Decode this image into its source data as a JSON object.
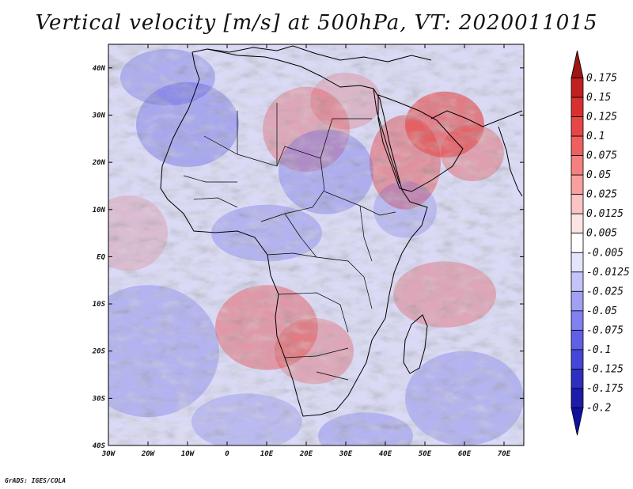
{
  "title": "Vertical velocity [m/s] at 500hPa, VT: 2020011015",
  "credit": "GrADS: IGES/COLA",
  "map": {
    "lon_range": [
      -30,
      75
    ],
    "lat_range": [
      -40,
      45
    ],
    "lon_ticks": [
      -30,
      -20,
      -10,
      0,
      10,
      20,
      30,
      40,
      50,
      60,
      70
    ],
    "lon_tick_labels": [
      "30W",
      "20W",
      "10W",
      "0",
      "10E",
      "20E",
      "30E",
      "40E",
      "50E",
      "60E",
      "70E"
    ],
    "lat_ticks": [
      40,
      30,
      20,
      10,
      0,
      -10,
      -20,
      -30,
      -40
    ],
    "lat_tick_labels": [
      "40N",
      "30N",
      "20N",
      "10N",
      "EQ",
      "10S",
      "20S",
      "30S",
      "40S"
    ],
    "ascent_color": "#5a5ae6",
    "descent_color": "#e64646",
    "coastline_color": "#000000"
  },
  "colorbar": {
    "levels": [
      0.175,
      0.15,
      0.125,
      0.1,
      0.075,
      0.05,
      0.025,
      0.0125,
      0.005,
      -0.005,
      -0.0125,
      -0.025,
      -0.05,
      -0.075,
      -0.1,
      -0.125,
      -0.175,
      -0.2
    ],
    "labels": [
      "0.175",
      "0.15",
      "0.125",
      "0.1",
      "0.075",
      "0.05",
      "0.025",
      "0.0125",
      "0.005",
      "-0.005",
      "-0.0125",
      "-0.025",
      "-0.05",
      "-0.075",
      "-0.1",
      "-0.125",
      "-0.175",
      "-0.2"
    ],
    "colors": [
      "#a01515",
      "#c02020",
      "#d83030",
      "#e64646",
      "#ee6060",
      "#f48080",
      "#f8a0a0",
      "#fbc4c4",
      "#fde4e4",
      "#ffffff",
      "#e4e4fd",
      "#c4c4f8",
      "#a0a0f4",
      "#8080f0",
      "#6060e6",
      "#4646d8",
      "#2e2ec0",
      "#1c1ca8",
      "#1010a0"
    ]
  }
}
